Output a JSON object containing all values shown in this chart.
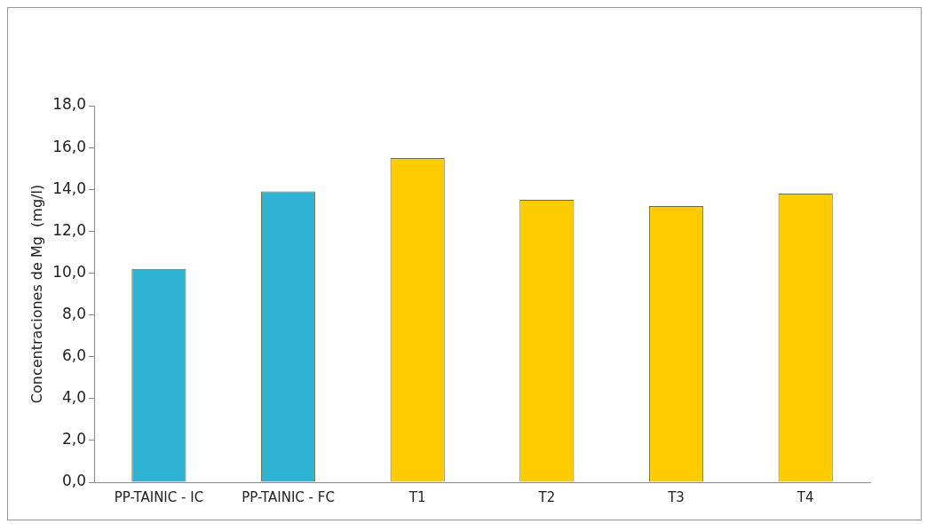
{
  "chart_data": {
    "type": "bar",
    "ylabel": "Concentraciones de Mg  (mg/l)",
    "categories": [
      "PP-TAINIC - IC",
      "PP-TAINIC - FC",
      "T1",
      "T2",
      "T3",
      "T4"
    ],
    "values": [
      10.2,
      13.9,
      15.5,
      13.5,
      13.2,
      13.8
    ],
    "colors": [
      "#2fb3d3",
      "#2fb3d3",
      "#ffcc00",
      "#ffcc00",
      "#ffcc00",
      "#ffcc00"
    ],
    "ylim": [
      0,
      18
    ],
    "yticks": [
      {
        "value": 0,
        "label": "0,0"
      },
      {
        "value": 2,
        "label": "2,0"
      },
      {
        "value": 4,
        "label": "4,0"
      },
      {
        "value": 6,
        "label": "6,0"
      },
      {
        "value": 8,
        "label": "8,0"
      },
      {
        "value": 10,
        "label": "10,0"
      },
      {
        "value": 12,
        "label": "12,0"
      },
      {
        "value": 14,
        "label": "14,0"
      },
      {
        "value": 16,
        "label": "16,0"
      },
      {
        "value": 18,
        "label": "18,0"
      }
    ],
    "grid": false,
    "legend": false
  }
}
